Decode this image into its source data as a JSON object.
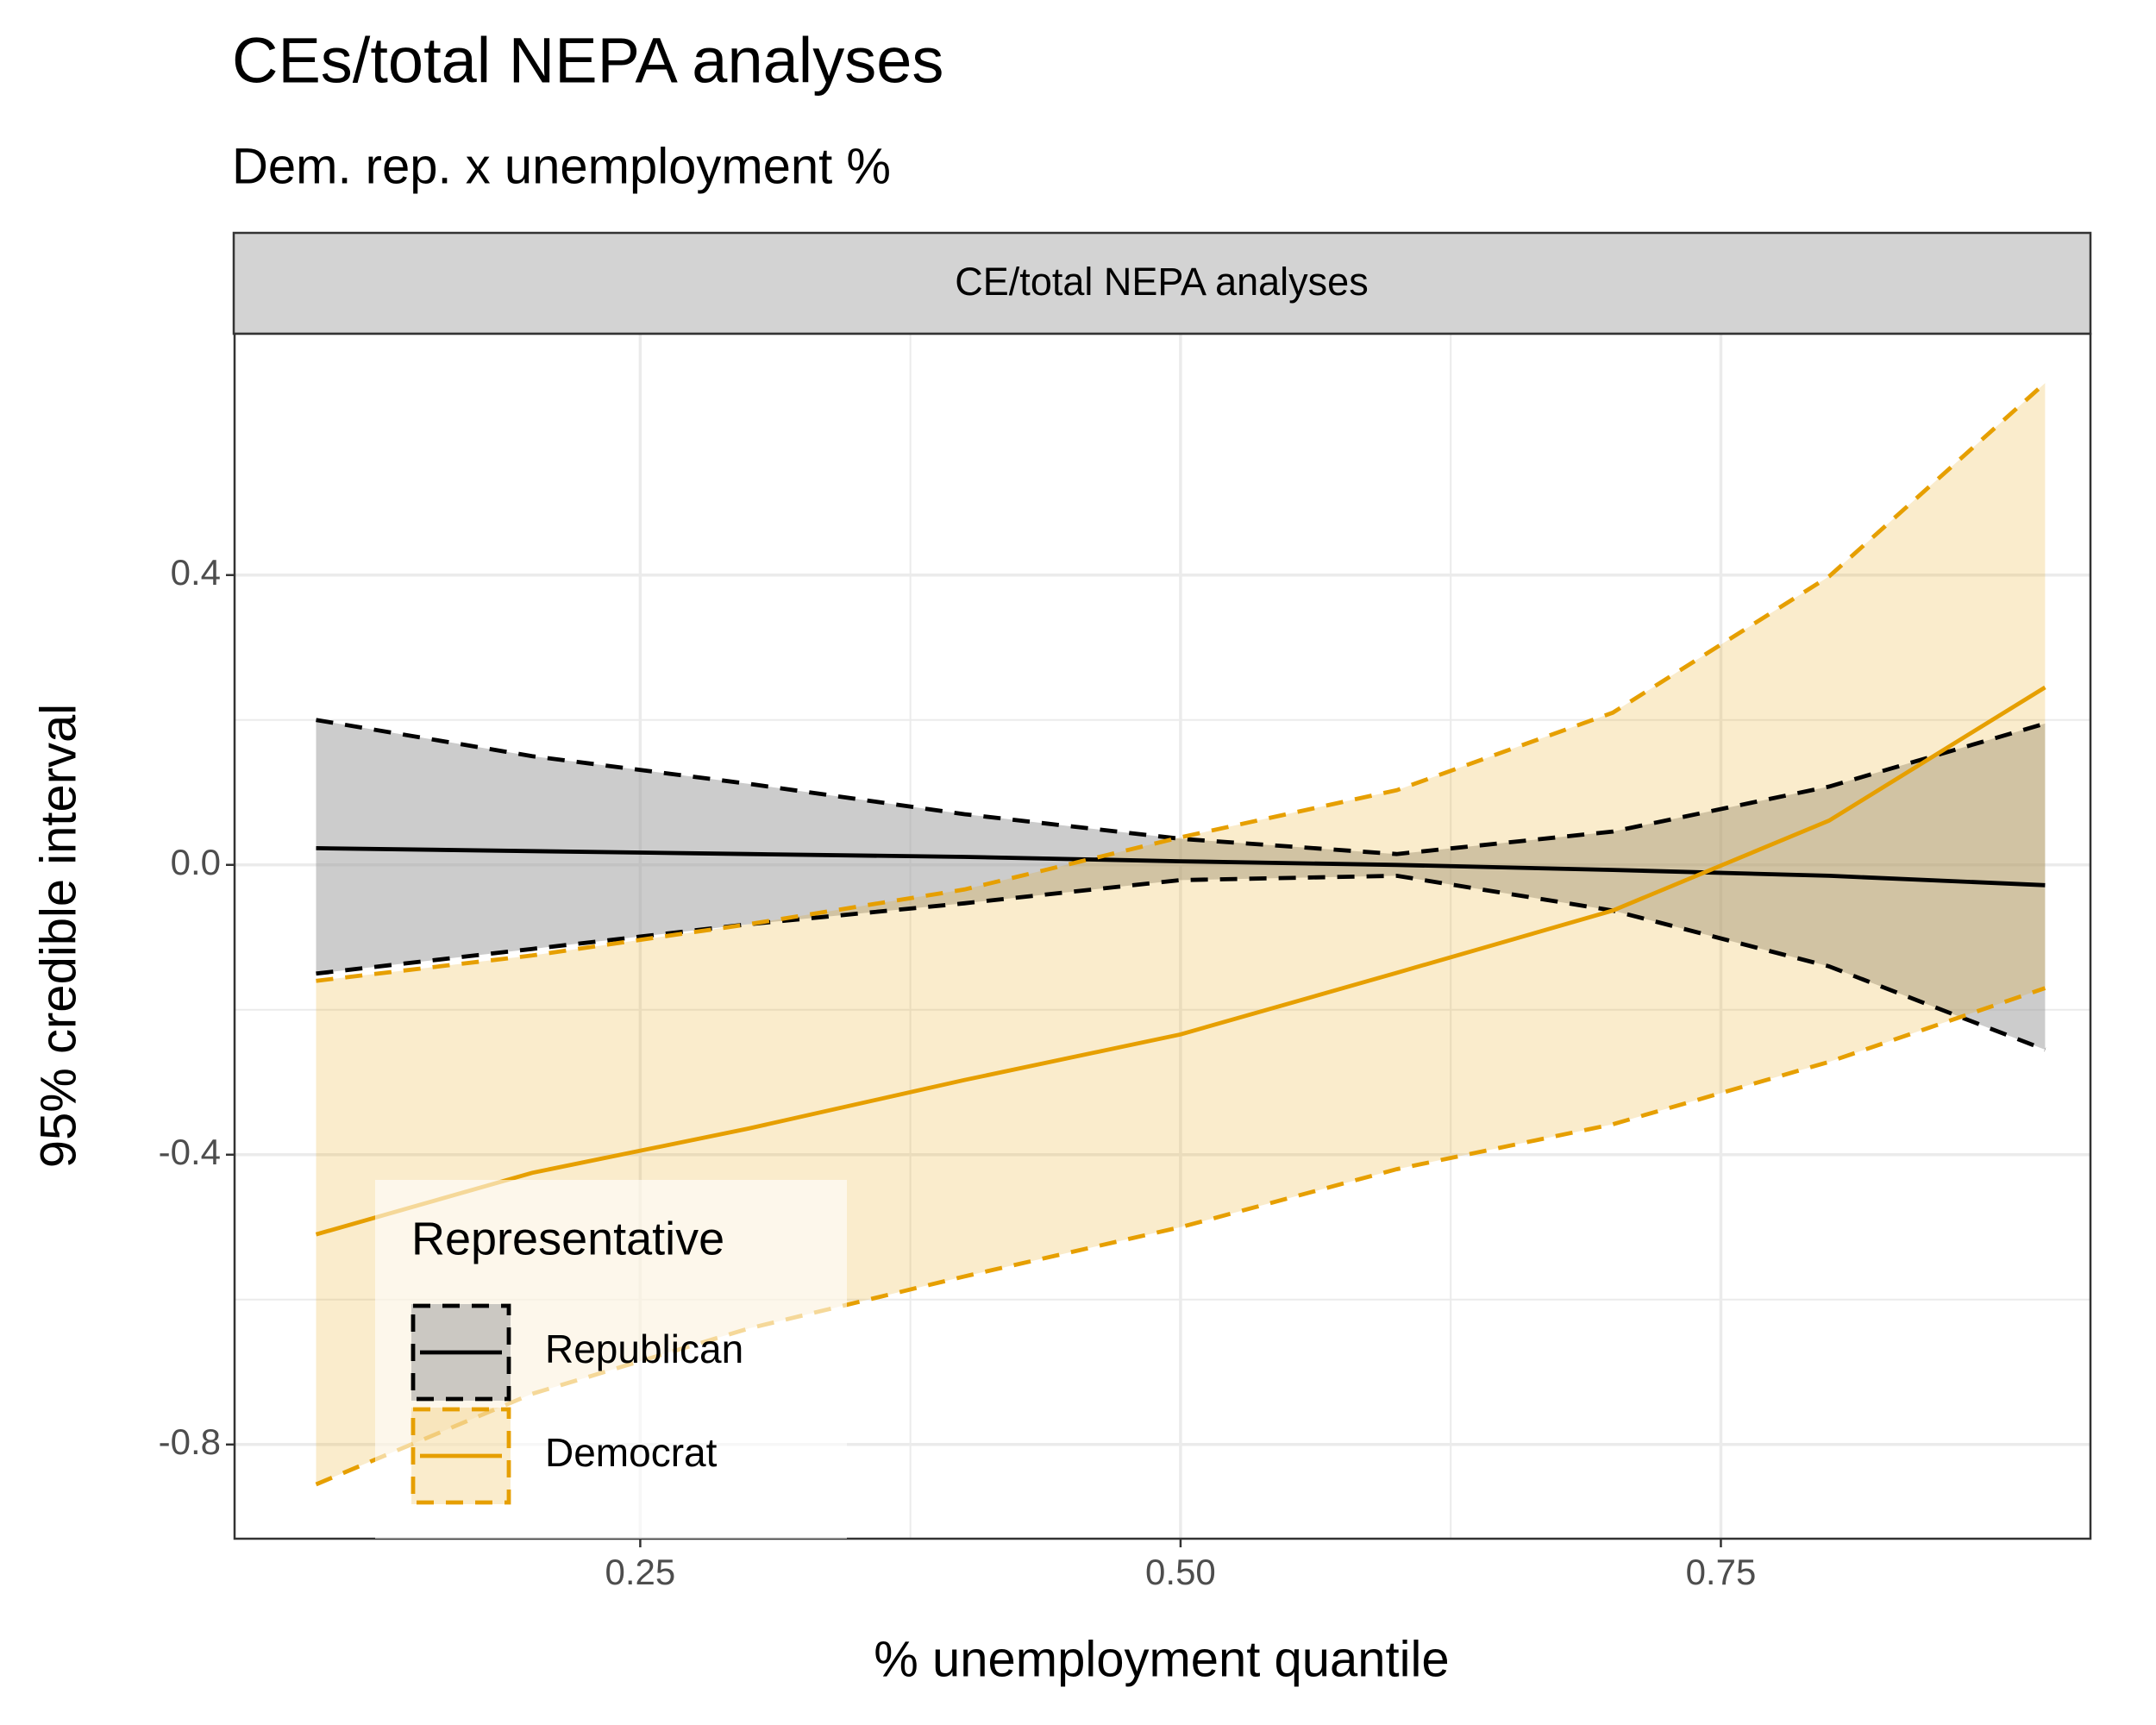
{
  "chart_data": {
    "type": "ribbon-line",
    "title": "CEs/total NEPA analyses",
    "subtitle": "Dem. rep. x unemployment %",
    "facet": "CE/total NEPA analyses",
    "x_label": "% unemployment quantile",
    "y_label": "95% credible interval",
    "legend_title": "Representative",
    "legend_position": "bottom-left",
    "grid": true,
    "x": [
      0.1,
      0.2,
      0.3,
      0.4,
      0.5,
      0.6,
      0.7,
      0.8,
      0.9
    ],
    "series": [
      {
        "name": "Republican",
        "color": "#000000",
        "fill": "#999999",
        "values": [
          0.023,
          0.019,
          0.015,
          0.011,
          0.005,
          0.0,
          -0.007,
          -0.015,
          -0.028
        ],
        "lower": [
          -0.15,
          -0.116,
          -0.082,
          -0.053,
          -0.021,
          -0.015,
          -0.063,
          -0.14,
          -0.255
        ],
        "upper": [
          0.2,
          0.15,
          0.112,
          0.07,
          0.036,
          0.015,
          0.046,
          0.108,
          0.195
        ]
      },
      {
        "name": "Democrat",
        "color": "#e69f00",
        "fill": "#e69f00",
        "values": [
          -0.51,
          -0.425,
          -0.364,
          -0.297,
          -0.234,
          -0.149,
          -0.063,
          0.061,
          0.245
        ],
        "lower": [
          -0.855,
          -0.73,
          -0.64,
          -0.568,
          -0.5,
          -0.42,
          -0.358,
          -0.272,
          -0.17
        ],
        "upper": [
          -0.16,
          -0.125,
          -0.082,
          -0.034,
          0.038,
          0.103,
          0.21,
          0.398,
          0.665
        ]
      }
    ],
    "xlim": [
      0.0623,
      0.921
    ],
    "ylim": [
      -0.93,
      0.733
    ],
    "xticks": [
      0.25,
      {
        "value": 0.5,
        "label": "0.50"
      },
      0.75
    ],
    "yticks": [
      -0.8,
      -0.4,
      {
        "value": 0,
        "label": "0.0"
      },
      0.4
    ]
  }
}
